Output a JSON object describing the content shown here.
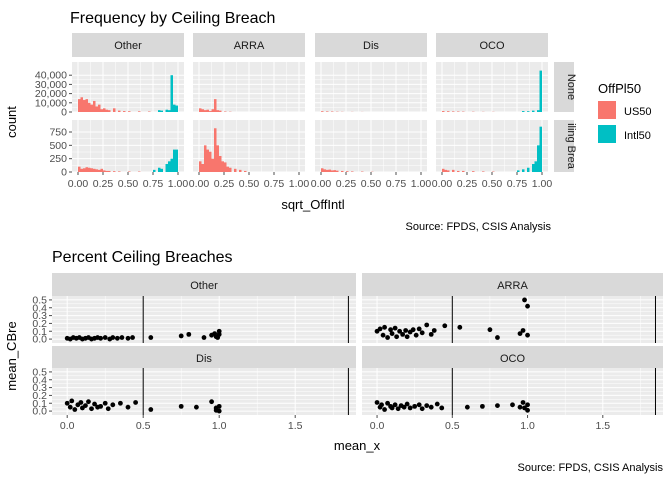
{
  "chart_data": [
    {
      "type": "bar",
      "title": "Frequency by Ceiling Breach",
      "xlabel": "sqrt_OffIntl",
      "ylabel": "count",
      "caption": "Source: FPDS, CSIS Analysis",
      "col_facets": [
        "Other",
        "ARRA",
        "Dis",
        "OCO"
      ],
      "row_facets": [
        "None",
        "Ceiling Breach"
      ],
      "row_facet_labels": [
        "None",
        "iling Brea"
      ],
      "xlim": [
        0,
        1
      ],
      "x_ticks": [
        "0.00",
        "0.25",
        "0.50",
        "0.75",
        "1.00"
      ],
      "row_ylims": [
        [
          0,
          50000
        ],
        [
          0,
          900
        ]
      ],
      "row_y_ticks": [
        [
          0,
          10000,
          20000,
          30000,
          40000
        ],
        [
          0,
          250,
          500,
          750
        ]
      ],
      "row_y_tick_labels": [
        [
          "0",
          "10,000",
          "20,000",
          "30,000",
          "40,000"
        ],
        [
          "0",
          "250",
          "500",
          "750"
        ]
      ],
      "legend": {
        "title": "OffPl50",
        "position": "right",
        "entries": [
          {
            "name": "US50",
            "color": "#F8766D"
          },
          {
            "name": "Intl50",
            "color": "#00BFC4"
          }
        ]
      },
      "bins": 40,
      "panels": [
        {
          "col": "Other",
          "row": "None",
          "US50": [
            [
              0.0,
              14000
            ],
            [
              0.025,
              16000
            ],
            [
              0.05,
              13000
            ],
            [
              0.075,
              14000
            ],
            [
              0.1,
              10000
            ],
            [
              0.125,
              8000
            ],
            [
              0.15,
              12000
            ],
            [
              0.175,
              6000
            ],
            [
              0.2,
              8000
            ],
            [
              0.225,
              3000
            ],
            [
              0.25,
              4000
            ],
            [
              0.275,
              2500
            ],
            [
              0.3,
              2000
            ],
            [
              0.35,
              4000
            ],
            [
              0.4,
              1500
            ],
            [
              0.45,
              1000
            ],
            [
              0.5,
              800
            ],
            [
              0.6,
              700
            ],
            [
              0.7,
              500
            ]
          ],
          "Intl50": [
            [
              0.8,
              2000
            ],
            [
              0.825,
              1500
            ],
            [
              0.875,
              2500
            ],
            [
              0.9,
              2000
            ],
            [
              0.925,
              40000
            ],
            [
              0.95,
              8000
            ],
            [
              0.975,
              7000
            ]
          ]
        },
        {
          "col": "ARRA",
          "row": "None",
          "US50": [
            [
              0.0,
              4000
            ],
            [
              0.025,
              3000
            ],
            [
              0.05,
              2000
            ],
            [
              0.075,
              2500
            ],
            [
              0.1,
              1000
            ],
            [
              0.125,
              3000
            ],
            [
              0.15,
              14000
            ],
            [
              0.175,
              2000
            ],
            [
              0.2,
              1500
            ],
            [
              0.25,
              500
            ],
            [
              0.3,
              300
            ]
          ],
          "Intl50": []
        },
        {
          "col": "Dis",
          "row": "None",
          "US50": [
            [
              0.0,
              800
            ],
            [
              0.05,
              600
            ],
            [
              0.1,
              500
            ],
            [
              0.15,
              300
            ],
            [
              0.2,
              200
            ],
            [
              0.3,
              150
            ],
            [
              0.4,
              100
            ]
          ],
          "Intl50": []
        },
        {
          "col": "OCO",
          "row": "None",
          "US50": [
            [
              0.0,
              1000
            ],
            [
              0.05,
              800
            ],
            [
              0.1,
              600
            ],
            [
              0.15,
              500
            ],
            [
              0.2,
              400
            ],
            [
              0.3,
              300
            ],
            [
              0.4,
              200
            ],
            [
              0.5,
              200
            ]
          ],
          "Intl50": [
            [
              0.8,
              1000
            ],
            [
              0.85,
              800
            ],
            [
              0.9,
              1500
            ],
            [
              0.95,
              2000
            ],
            [
              0.975,
              45000
            ]
          ]
        },
        {
          "col": "Other",
          "row": "Ceiling Breach",
          "US50": [
            [
              0.0,
              100
            ],
            [
              0.025,
              60
            ],
            [
              0.05,
              70
            ],
            [
              0.075,
              90
            ],
            [
              0.1,
              80
            ],
            [
              0.125,
              70
            ],
            [
              0.15,
              60
            ],
            [
              0.175,
              50
            ],
            [
              0.2,
              40
            ],
            [
              0.225,
              60
            ],
            [
              0.25,
              30
            ],
            [
              0.275,
              20
            ],
            [
              0.3,
              20
            ],
            [
              0.35,
              15
            ],
            [
              0.4,
              10
            ],
            [
              0.5,
              10
            ],
            [
              0.6,
              8
            ]
          ],
          "Intl50": [
            [
              0.75,
              40
            ],
            [
              0.8,
              80
            ],
            [
              0.825,
              60
            ],
            [
              0.875,
              150
            ],
            [
              0.9,
              200
            ],
            [
              0.925,
              250
            ],
            [
              0.95,
              420
            ],
            [
              0.975,
              420
            ]
          ]
        },
        {
          "col": "ARRA",
          "row": "Ceiling Breach",
          "US50": [
            [
              0.0,
              200
            ],
            [
              0.025,
              150
            ],
            [
              0.05,
              500
            ],
            [
              0.075,
              420
            ],
            [
              0.1,
              380
            ],
            [
              0.125,
              250
            ],
            [
              0.15,
              820
            ],
            [
              0.175,
              500
            ],
            [
              0.2,
              300
            ],
            [
              0.225,
              200
            ],
            [
              0.25,
              180
            ],
            [
              0.275,
              100
            ],
            [
              0.3,
              80
            ],
            [
              0.35,
              60
            ],
            [
              0.4,
              40
            ],
            [
              0.45,
              20
            ]
          ],
          "Intl50": []
        },
        {
          "col": "Dis",
          "row": "Ceiling Breach",
          "US50": [
            [
              0.0,
              70
            ],
            [
              0.025,
              50
            ],
            [
              0.05,
              40
            ],
            [
              0.075,
              45
            ],
            [
              0.1,
              30
            ],
            [
              0.125,
              35
            ],
            [
              0.15,
              25
            ],
            [
              0.2,
              20
            ],
            [
              0.25,
              15
            ],
            [
              0.3,
              10
            ],
            [
              0.4,
              8
            ],
            [
              0.5,
              5
            ]
          ],
          "Intl50": []
        },
        {
          "col": "OCO",
          "row": "Ceiling Breach",
          "US50": [
            [
              0.0,
              60
            ],
            [
              0.025,
              40
            ],
            [
              0.05,
              30
            ],
            [
              0.1,
              40
            ],
            [
              0.15,
              20
            ],
            [
              0.2,
              20
            ],
            [
              0.3,
              15
            ],
            [
              0.4,
              10
            ],
            [
              0.5,
              8
            ]
          ],
          "Intl50": [
            [
              0.75,
              30
            ],
            [
              0.8,
              50
            ],
            [
              0.85,
              80
            ],
            [
              0.9,
              150
            ],
            [
              0.925,
              200
            ],
            [
              0.95,
              500
            ],
            [
              0.975,
              850
            ]
          ]
        }
      ]
    },
    {
      "type": "scatter",
      "title": "Percent Ceiling Breaches",
      "xlabel": "mean_x",
      "ylabel": "mean_CBre",
      "caption": "Source: FPDS, CSIS Analysis",
      "facets": [
        "Other",
        "ARRA",
        "Dis",
        "OCO"
      ],
      "xlim": [
        -0.1,
        1.9
      ],
      "x_ticks": [
        0.0,
        0.5,
        1.0,
        1.5
      ],
      "x_tick_labels": [
        "0.0",
        "0.5",
        "1.0",
        "1.5"
      ],
      "ylim": [
        -0.05,
        0.55
      ],
      "y_ticks": [
        0.0,
        0.1,
        0.2,
        0.3,
        0.4,
        0.5
      ],
      "y_tick_labels": [
        "0.0",
        "0.1",
        "0.2",
        "0.3",
        "0.4",
        "0.5"
      ],
      "vlines": [
        0.5,
        1.85
      ],
      "panels": [
        {
          "facet": "Other",
          "points": [
            [
              0.0,
              0.01
            ],
            [
              0.02,
              0.0
            ],
            [
              0.04,
              0.02
            ],
            [
              0.06,
              0.01
            ],
            [
              0.08,
              0.02
            ],
            [
              0.1,
              0.0
            ],
            [
              0.12,
              0.01
            ],
            [
              0.14,
              0.02
            ],
            [
              0.16,
              0.0
            ],
            [
              0.18,
              0.01
            ],
            [
              0.2,
              0.02
            ],
            [
              0.22,
              0.01
            ],
            [
              0.25,
              0.02
            ],
            [
              0.28,
              0.0
            ],
            [
              0.3,
              0.02
            ],
            [
              0.33,
              0.01
            ],
            [
              0.36,
              0.02
            ],
            [
              0.4,
              0.01
            ],
            [
              0.43,
              0.02
            ],
            [
              0.55,
              0.02
            ],
            [
              0.75,
              0.04
            ],
            [
              0.8,
              0.06
            ],
            [
              0.9,
              0.02
            ],
            [
              0.95,
              0.05
            ],
            [
              0.97,
              0.07
            ],
            [
              0.98,
              0.03
            ],
            [
              1.0,
              0.1
            ],
            [
              1.0,
              0.06
            ],
            [
              0.99,
              0.02
            ]
          ]
        },
        {
          "facet": "ARRA",
          "points": [
            [
              0.0,
              0.1
            ],
            [
              0.02,
              0.13
            ],
            [
              0.04,
              0.05
            ],
            [
              0.05,
              0.15
            ],
            [
              0.07,
              0.02
            ],
            [
              0.09,
              0.12
            ],
            [
              0.1,
              0.07
            ],
            [
              0.12,
              0.14
            ],
            [
              0.13,
              0.03
            ],
            [
              0.15,
              0.1
            ],
            [
              0.17,
              0.06
            ],
            [
              0.19,
              0.11
            ],
            [
              0.2,
              0.03
            ],
            [
              0.22,
              0.09
            ],
            [
              0.24,
              0.12
            ],
            [
              0.26,
              0.05
            ],
            [
              0.28,
              0.13
            ],
            [
              0.3,
              0.08
            ],
            [
              0.33,
              0.18
            ],
            [
              0.36,
              0.06
            ],
            [
              0.38,
              0.11
            ],
            [
              0.45,
              0.17
            ],
            [
              0.55,
              0.15
            ],
            [
              0.75,
              0.12
            ],
            [
              0.8,
              0.02
            ],
            [
              0.95,
              0.07
            ],
            [
              0.97,
              0.11
            ],
            [
              0.98,
              0.5
            ],
            [
              1.0,
              0.42
            ],
            [
              1.0,
              0.05
            ]
          ]
        },
        {
          "facet": "Dis",
          "points": [
            [
              0.0,
              0.1
            ],
            [
              0.02,
              0.05
            ],
            [
              0.03,
              0.13
            ],
            [
              0.05,
              0.02
            ],
            [
              0.07,
              0.08
            ],
            [
              0.09,
              0.11
            ],
            [
              0.1,
              0.04
            ],
            [
              0.12,
              0.07
            ],
            [
              0.14,
              0.12
            ],
            [
              0.16,
              0.03
            ],
            [
              0.18,
              0.09
            ],
            [
              0.2,
              0.05
            ],
            [
              0.22,
              0.06
            ],
            [
              0.25,
              0.1
            ],
            [
              0.27,
              0.03
            ],
            [
              0.3,
              0.08
            ],
            [
              0.35,
              0.1
            ],
            [
              0.4,
              0.05
            ],
            [
              0.45,
              0.11
            ],
            [
              0.55,
              0.02
            ],
            [
              0.75,
              0.06
            ],
            [
              0.85,
              0.05
            ],
            [
              0.95,
              0.12
            ],
            [
              0.98,
              0.04
            ],
            [
              1.0,
              0.06
            ],
            [
              1.0,
              0.0
            ],
            [
              0.98,
              0.01
            ]
          ]
        },
        {
          "facet": "OCO",
          "points": [
            [
              0.0,
              0.11
            ],
            [
              0.02,
              0.05
            ],
            [
              0.03,
              0.08
            ],
            [
              0.05,
              0.02
            ],
            [
              0.07,
              0.1
            ],
            [
              0.09,
              0.06
            ],
            [
              0.1,
              0.04
            ],
            [
              0.12,
              0.08
            ],
            [
              0.14,
              0.03
            ],
            [
              0.16,
              0.07
            ],
            [
              0.18,
              0.05
            ],
            [
              0.2,
              0.09
            ],
            [
              0.22,
              0.04
            ],
            [
              0.25,
              0.06
            ],
            [
              0.28,
              0.08
            ],
            [
              0.3,
              0.03
            ],
            [
              0.33,
              0.07
            ],
            [
              0.36,
              0.05
            ],
            [
              0.4,
              0.09
            ],
            [
              0.43,
              0.04
            ],
            [
              0.6,
              0.05
            ],
            [
              0.7,
              0.06
            ],
            [
              0.8,
              0.07
            ],
            [
              0.9,
              0.08
            ],
            [
              0.95,
              0.05
            ],
            [
              0.97,
              0.11
            ],
            [
              0.98,
              0.04
            ],
            [
              1.0,
              0.08
            ],
            [
              1.0,
              0.01
            ]
          ]
        }
      ]
    }
  ]
}
